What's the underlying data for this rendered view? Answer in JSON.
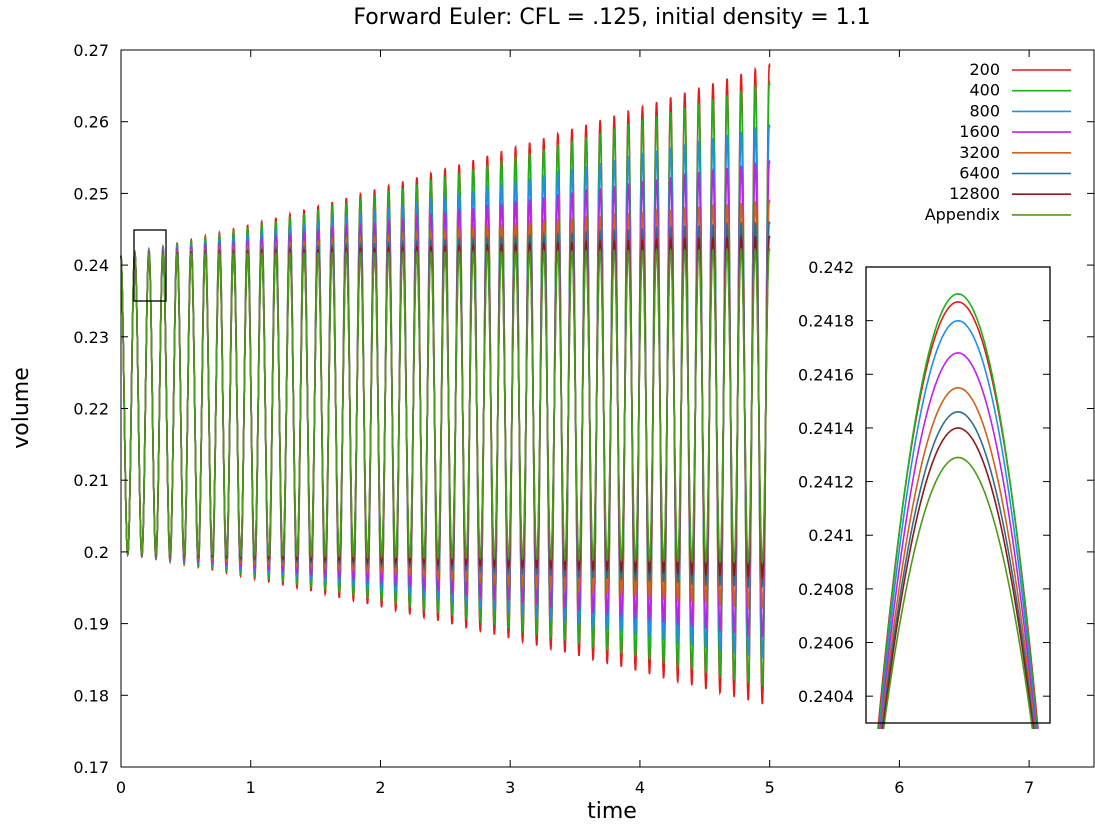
{
  "chart_data": [
    {
      "type": "line",
      "title": "Forward Euler: CFL = .125, initial density = 1.1",
      "xlabel": "time",
      "ylabel": "volume",
      "xlim": [
        0,
        7.5
      ],
      "ylim": [
        0.17,
        0.27
      ],
      "xticks": [
        "0",
        "1",
        "2",
        "3",
        "4",
        "5",
        "6",
        "7"
      ],
      "yticks": [
        "0.17",
        "0.18",
        "0.19",
        "0.2",
        "0.21",
        "0.22",
        "0.23",
        "0.24",
        "0.25",
        "0.26",
        "0.27"
      ],
      "grid": false,
      "legend_position": "top-right",
      "oscillation": {
        "t_end": 5.0,
        "cycles": 46,
        "center": 0.2205,
        "initial_amplitude": 0.0209
      },
      "series": [
        {
          "name": "200",
          "color": "#e41a1c",
          "final_max": 0.268,
          "final_min": 0.1785
        },
        {
          "name": "400",
          "color": "#1ab31a",
          "final_max": 0.2655,
          "final_min": 0.181
        },
        {
          "name": "800",
          "color": "#1e90e8",
          "final_max": 0.2595,
          "final_min": 0.185
        },
        {
          "name": "1600",
          "color": "#c020e8",
          "final_max": 0.2545,
          "final_min": 0.188
        },
        {
          "name": "3200",
          "color": "#d0621a",
          "final_max": 0.249,
          "final_min": 0.192
        },
        {
          "name": "6400",
          "color": "#2e6e8c",
          "final_max": 0.246,
          "final_min": 0.195
        },
        {
          "name": "12800",
          "color": "#8b1a1a",
          "final_max": 0.244,
          "final_min": 0.1965
        },
        {
          "name": "Appendix",
          "color": "#4c9a1a",
          "final_max": 0.2422,
          "final_min": 0.1985
        }
      ]
    },
    {
      "type": "line",
      "title": "",
      "xlim": [
        0.1,
        0.35
      ],
      "ylim": [
        0.2403,
        0.242
      ],
      "yticks": [
        "0.2404",
        "0.2406",
        "0.2408",
        "0.241",
        "0.2412",
        "0.2414",
        "0.2416",
        "0.2418",
        "0.242"
      ],
      "peak_time": 0.215,
      "series": [
        {
          "name": "200",
          "peak": 0.24187
        },
        {
          "name": "400",
          "peak": 0.2419
        },
        {
          "name": "800",
          "peak": 0.2418
        },
        {
          "name": "1600",
          "peak": 0.24168
        },
        {
          "name": "3200",
          "peak": 0.24155
        },
        {
          "name": "6400",
          "peak": 0.24146
        },
        {
          "name": "12800",
          "peak": 0.2414
        },
        {
          "name": "Appendix",
          "peak": 0.24129
        }
      ]
    }
  ]
}
